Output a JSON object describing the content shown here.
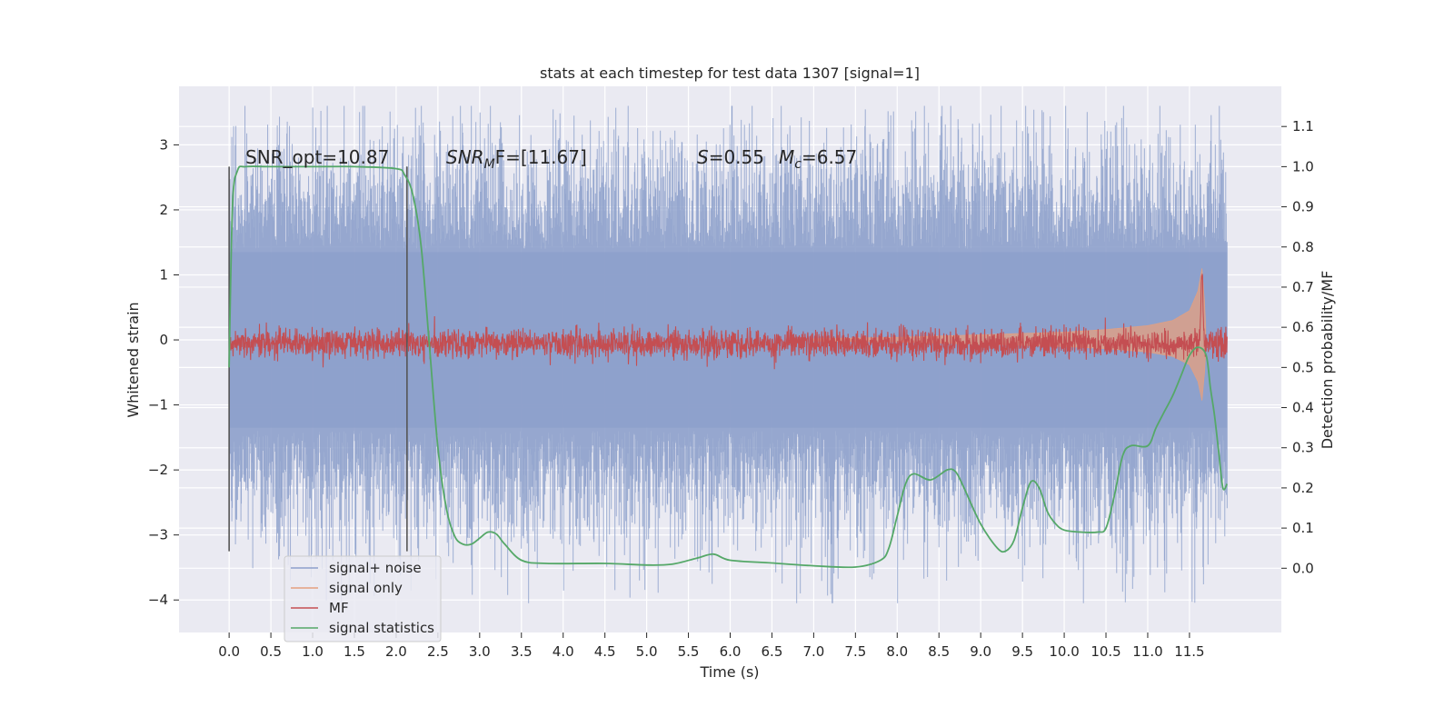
{
  "chart_data": {
    "type": "line",
    "title": "stats at each timestep for test data 1307 [signal=1]",
    "xlabel": "Time (s)",
    "ylabel": "Whitened strain",
    "ylabel_right": "Detection probability/MF",
    "xlim": [
      -0.6,
      12.6
    ],
    "ylim": [
      -4.5,
      3.9
    ],
    "ylim_right": [
      -0.16,
      1.2
    ],
    "x_ticks": [
      0.0,
      0.5,
      1.0,
      1.5,
      2.0,
      2.5,
      3.0,
      3.5,
      4.0,
      4.5,
      5.0,
      5.5,
      6.0,
      6.5,
      7.0,
      7.5,
      8.0,
      8.5,
      9.0,
      9.5,
      10.0,
      10.5,
      11.0,
      11.5
    ],
    "x_tick_labels": [
      "0.0",
      "0.5",
      "1.0",
      "1.5",
      "2.0",
      "2.5",
      "3.0",
      "3.5",
      "4.0",
      "4.5",
      "5.0",
      "5.5",
      "6.0",
      "6.5",
      "7.0",
      "7.5",
      "8.0",
      "8.5",
      "9.0",
      "9.5",
      "10.0",
      "10.5",
      "11.0",
      "11.5"
    ],
    "y_ticks": [
      3,
      2,
      1,
      0,
      -1,
      -2,
      -3,
      -4
    ],
    "y_tick_labels": [
      "3",
      "2",
      "1",
      "0",
      "−1",
      "−2",
      "−3",
      "−4"
    ],
    "y_right_ticks": [
      1.1,
      1.0,
      0.9,
      0.8,
      0.7,
      0.6,
      0.5,
      0.4,
      0.3,
      0.2,
      0.1,
      0.0
    ],
    "y_right_tick_labels": [
      "1.1",
      "1.0",
      "0.9",
      "0.8",
      "0.7",
      "0.6",
      "0.5",
      "0.4",
      "0.3",
      "0.2",
      "0.1",
      "0.0"
    ],
    "grid": true,
    "legend_position": "lower-left",
    "annotations": {
      "snr_opt": "SNR_opt=10.87",
      "snr_mf_prefix": "SNR",
      "snr_mf_sub": "M",
      "snr_mf_suffix": "F=[11.67]",
      "s_symbol": "S",
      "s_value": "=0.55",
      "mc_symbol": "M",
      "mc_sub": "c",
      "mc_value": "=6.57"
    },
    "vertical_markers": [
      0.0,
      2.13
    ],
    "series": [
      {
        "name": "signal+ noise",
        "color": "#8da0cb",
        "axis": "left",
        "style": "noise band",
        "x_range": [
          0.0,
          11.95
        ],
        "typical_range": [
          -1.5,
          1.5
        ],
        "extreme_range": [
          -4.05,
          3.6
        ]
      },
      {
        "name": "signal only",
        "color": "#e5a07f",
        "axis": "left",
        "style": "chirp envelope",
        "x": [
          7.0,
          8.0,
          9.0,
          10.0,
          10.5,
          11.0,
          11.3,
          11.5,
          11.6,
          11.65,
          11.68,
          11.7
        ],
        "amplitude": [
          0.02,
          0.04,
          0.08,
          0.12,
          0.16,
          0.22,
          0.3,
          0.45,
          0.75,
          1.1,
          0.6,
          0.05
        ]
      },
      {
        "name": "MF",
        "color": "#c44e52",
        "axis": "right",
        "style": "noisy line",
        "x_range": [
          0.0,
          11.95
        ],
        "baseline": 0.56,
        "jitter": 0.018,
        "peak": {
          "x": 11.65,
          "y": 0.73
        }
      },
      {
        "name": "signal statistics",
        "color": "#55a868",
        "axis": "right",
        "style": "smooth line",
        "x": [
          0.0,
          0.04,
          0.1,
          0.2,
          0.5,
          1.0,
          1.5,
          2.0,
          2.1,
          2.2,
          2.3,
          2.4,
          2.5,
          2.6,
          2.7,
          2.8,
          2.9,
          3.0,
          3.1,
          3.2,
          3.3,
          3.5,
          3.8,
          4.5,
          5.0,
          5.3,
          5.6,
          5.8,
          6.0,
          6.5,
          7.0,
          7.5,
          7.8,
          7.9,
          8.0,
          8.1,
          8.2,
          8.4,
          8.6,
          8.7,
          8.8,
          9.0,
          9.2,
          9.3,
          9.4,
          9.5,
          9.6,
          9.7,
          9.8,
          9.9,
          10.0,
          10.2,
          10.4,
          10.5,
          10.6,
          10.7,
          10.8,
          11.0,
          11.1,
          11.2,
          11.3,
          11.4,
          11.5,
          11.6,
          11.7,
          11.75,
          11.8,
          11.85,
          11.9,
          11.95
        ],
        "y": [
          0.5,
          0.9,
          0.99,
          1.0,
          1.0,
          1.0,
          1.0,
          0.995,
          0.98,
          0.93,
          0.8,
          0.55,
          0.3,
          0.15,
          0.08,
          0.06,
          0.06,
          0.075,
          0.09,
          0.085,
          0.06,
          0.02,
          0.012,
          0.012,
          0.008,
          0.01,
          0.025,
          0.035,
          0.02,
          0.013,
          0.006,
          0.003,
          0.02,
          0.05,
          0.13,
          0.21,
          0.235,
          0.22,
          0.245,
          0.24,
          0.2,
          0.11,
          0.05,
          0.043,
          0.07,
          0.15,
          0.215,
          0.2,
          0.14,
          0.11,
          0.095,
          0.09,
          0.09,
          0.1,
          0.18,
          0.28,
          0.305,
          0.305,
          0.35,
          0.39,
          0.43,
          0.48,
          0.53,
          0.55,
          0.53,
          0.45,
          0.38,
          0.29,
          0.2,
          0.21
        ]
      }
    ]
  }
}
